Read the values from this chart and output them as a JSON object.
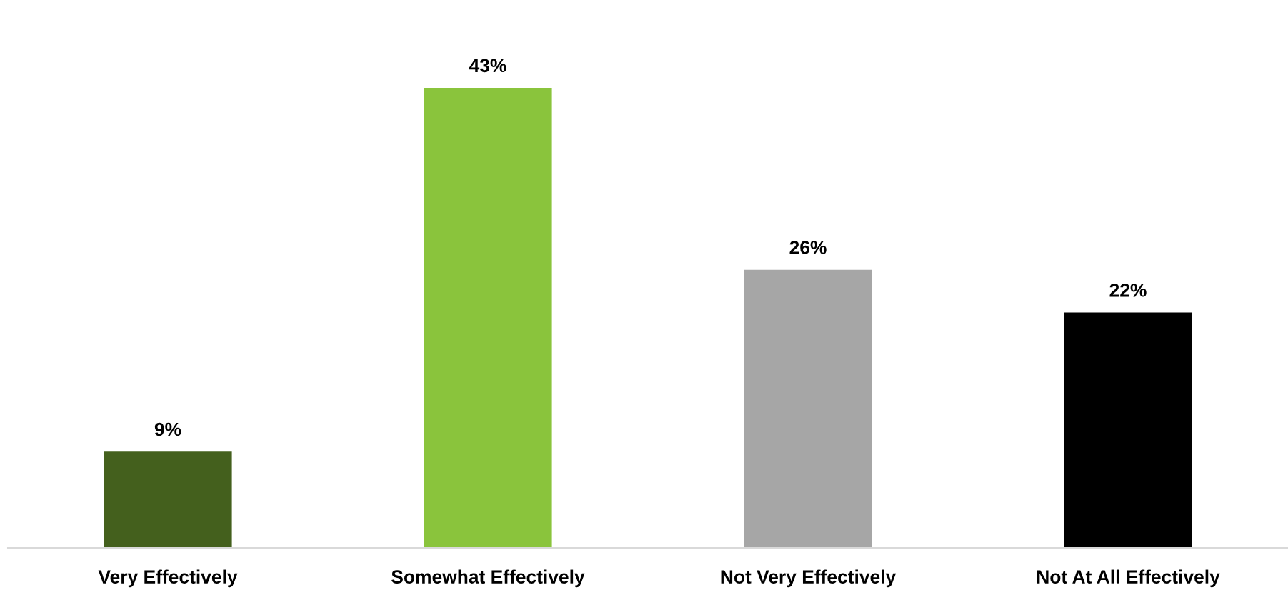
{
  "chart_data": {
    "type": "bar",
    "categories": [
      "Very Effectively",
      "Somewhat Effectively",
      "Not Very Effectively",
      "Not At All Effectively"
    ],
    "values": [
      9,
      43,
      26,
      22
    ],
    "colors": [
      "#44601d",
      "#8ac43c",
      "#a6a6a6",
      "#000000"
    ],
    "value_labels": [
      "9%",
      "43%",
      "26%",
      "22%"
    ],
    "grid": false,
    "legend": false
  }
}
